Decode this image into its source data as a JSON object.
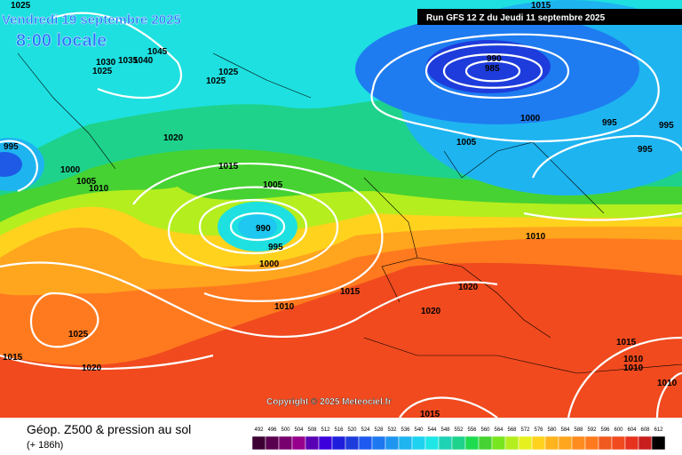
{
  "header": {
    "date": "Vendredi 19 septembre 2025",
    "time": "8:00 locale",
    "run": "Run GFS 12 Z du Jeudi 11 septembre 2025"
  },
  "copyright": "Copyright © 2025 Meteociel.fr",
  "legend": {
    "title": "Géop. Z500 & pression au sol",
    "lead": "(+ 186h)",
    "scale": [
      492,
      496,
      500,
      504,
      508,
      512,
      516,
      520,
      524,
      528,
      532,
      536,
      540,
      544,
      548,
      552,
      556,
      560,
      564,
      568,
      572,
      576,
      580,
      584,
      588,
      592,
      596,
      600,
      604,
      608,
      612
    ]
  },
  "isobar_labels": [
    1025,
    1045,
    1040,
    1035,
    1030,
    1025,
    1025,
    1025,
    1020,
    1015,
    1005,
    990,
    995,
    1000,
    1010,
    1005,
    1000,
    995,
    1015,
    1010,
    1025,
    1020,
    1015,
    990,
    985,
    1000,
    995,
    995,
    995,
    1005,
    1010,
    1020,
    1020,
    1015,
    1010,
    1010,
    1010,
    1015,
    1015
  ]
}
